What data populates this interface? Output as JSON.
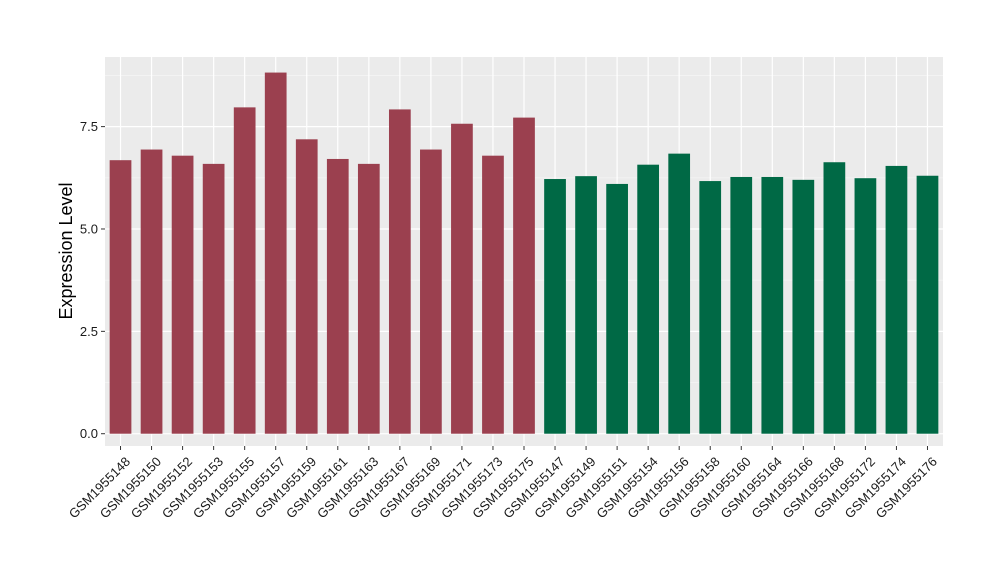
{
  "chart_data": {
    "type": "bar",
    "title": "",
    "xlabel": "",
    "ylabel": "Expression Level",
    "ylim": [
      -0.3,
      9.2
    ],
    "yticks": [
      0.0,
      2.5,
      5.0,
      7.5
    ],
    "ytick_labels": [
      "0.0",
      "2.5",
      "5.0",
      "7.5"
    ],
    "grid": true,
    "legend": "none",
    "categories": [
      "GSM1955148",
      "GSM1955150",
      "GSM1955152",
      "GSM1955153",
      "GSM1955155",
      "GSM1955157",
      "GSM1955159",
      "GSM1955161",
      "GSM1955163",
      "GSM1955167",
      "GSM1955169",
      "GSM1955171",
      "GSM1955173",
      "GSM1955175",
      "GSM1955147",
      "GSM1955149",
      "GSM1955151",
      "GSM1955154",
      "GSM1955156",
      "GSM1955158",
      "GSM1955160",
      "GSM1955164",
      "GSM1955166",
      "GSM1955168",
      "GSM1955172",
      "GSM1955174",
      "GSM1955176"
    ],
    "values": [
      6.68,
      6.94,
      6.79,
      6.59,
      7.97,
      8.82,
      7.19,
      6.71,
      6.59,
      7.92,
      6.94,
      7.57,
      6.79,
      7.72,
      6.22,
      6.29,
      6.1,
      6.57,
      6.84,
      6.17,
      6.27,
      6.27,
      6.2,
      6.63,
      6.24,
      6.54,
      6.3
    ],
    "groups": [
      "a",
      "a",
      "a",
      "a",
      "a",
      "a",
      "a",
      "a",
      "a",
      "a",
      "a",
      "a",
      "a",
      "a",
      "b",
      "b",
      "b",
      "b",
      "b",
      "b",
      "b",
      "b",
      "b",
      "b",
      "b",
      "b",
      "b"
    ],
    "group_colors": {
      "a": "#9b404f",
      "b": "#006945"
    },
    "panel_background": "#ebebeb",
    "grid_major_color": "#ffffff",
    "grid_minor_color": "#f4f4f4"
  }
}
